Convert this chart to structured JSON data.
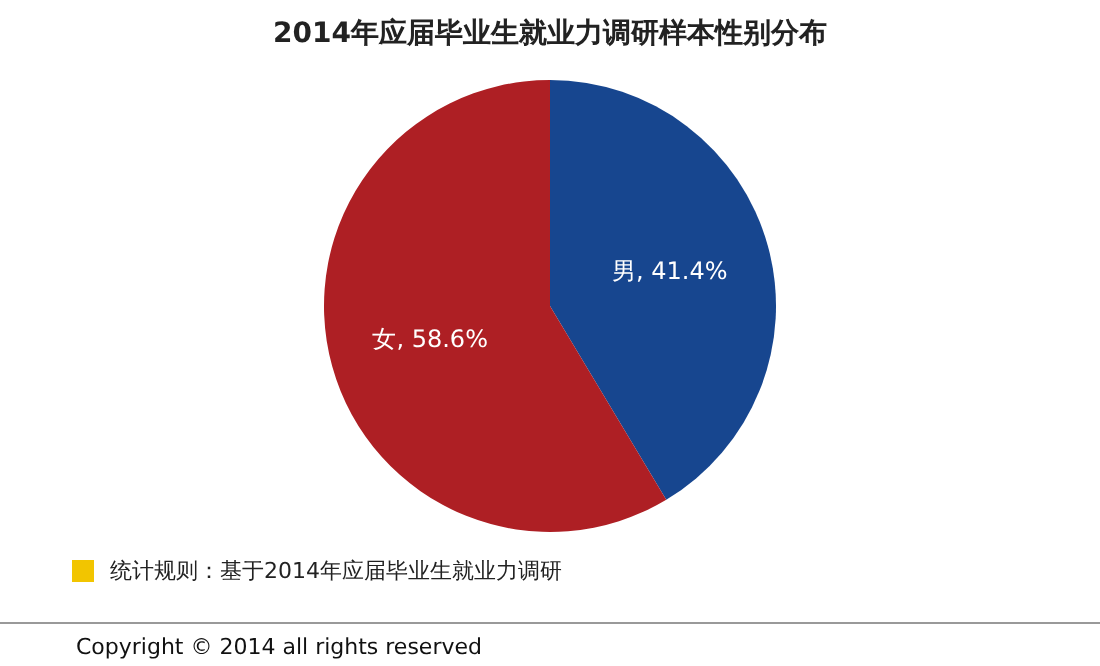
{
  "chart_data": {
    "type": "pie",
    "title": "2014年应届毕业生就业力调研样本性别分布",
    "categories": [
      "男",
      "女"
    ],
    "values": [
      41.4,
      58.6
    ],
    "colors": [
      "#17468f",
      "#ae1f24"
    ],
    "value_labels": [
      "41.4%",
      "58.6%"
    ],
    "legend": false,
    "annotations": [
      "统计规则：基于2014年应届毕业生就业力调研",
      "Copyright © 2014 all rights reserved"
    ]
  }
}
